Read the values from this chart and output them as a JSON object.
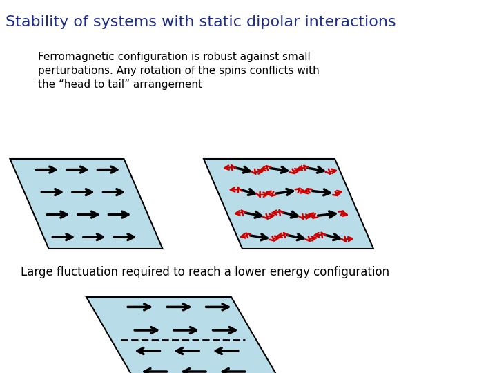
{
  "title": "Stability of systems with static dipolar interactions",
  "title_color": "#1f2d8a",
  "title_fontsize": 16,
  "bg_color": "#ffffff",
  "parallelogram_fill": "#b8dce8",
  "parallelogram_edge": "#000000",
  "text1": "Ferromagnetic configuration is robust against small\nperturbations. Any rotation of the spins conflicts with\nthe “head to tail” arrangement",
  "text1_fontsize": 11,
  "text2": "Large fluctuation required to reach a lower energy configuration",
  "text2_fontsize": 12,
  "arrow_color_black": "#000000",
  "arrow_color_red": "#cc0000"
}
